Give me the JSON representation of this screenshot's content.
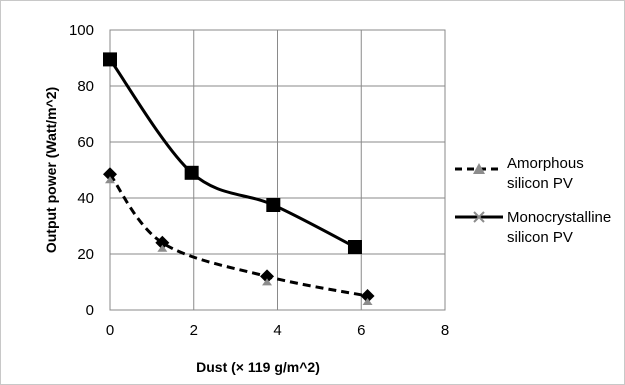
{
  "chart_data": {
    "type": "line",
    "title": "",
    "xlabel": "Dust (× 119 g/m^2)",
    "ylabel": "Output power (Watt/m^2)",
    "xlim": [
      0,
      8
    ],
    "ylim": [
      0,
      100
    ],
    "xticks": [
      0,
      2,
      4,
      6,
      8
    ],
    "yticks": [
      0,
      20,
      40,
      60,
      80,
      100
    ],
    "grid": true,
    "legend_position": "right",
    "series": [
      {
        "name": "Amorphous silicon PV",
        "name_lines": [
          "Amorphous",
          "silicon PV"
        ],
        "style": "dashed",
        "color": "#000000",
        "legend_marker": "triangle",
        "legend_marker_color": "#8c8c8c",
        "point_marker": "diamond",
        "x": [
          0,
          1.25,
          3.75,
          6.15
        ],
        "y": [
          48.5,
          24,
          12,
          5
        ]
      },
      {
        "name": "Monocrystalline silicon PV",
        "name_lines": [
          "Monocrystalline",
          "silicon PV"
        ],
        "style": "solid",
        "color": "#000000",
        "legend_marker": "x",
        "legend_marker_color": "#8c8c8c",
        "point_marker": "square",
        "x": [
          0,
          1.95,
          3.9,
          5.85
        ],
        "y": [
          89.5,
          49,
          37.5,
          22.5
        ]
      }
    ]
  }
}
